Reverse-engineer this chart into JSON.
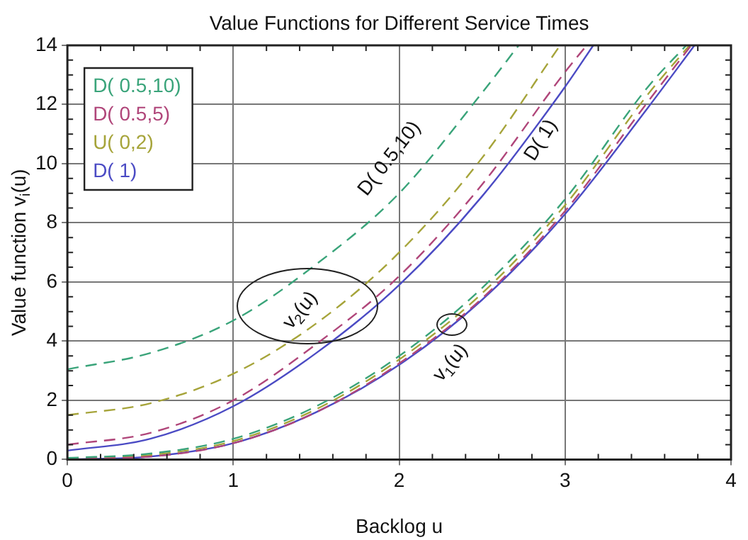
{
  "chart_data": {
    "type": "line",
    "title": "Value Functions for Different Service Times",
    "xlabel": "Backlog u",
    "ylabel": "Value function v$_{i}$(u)",
    "xlim": [
      0,
      4
    ],
    "ylim": [
      0,
      14
    ],
    "xticks": [
      0,
      1,
      2,
      3,
      4
    ],
    "yticks": [
      0,
      2,
      4,
      6,
      8,
      10,
      12,
      14
    ],
    "grid": true,
    "legend": "top left",
    "marker": "none",
    "series": [
      {
        "name": "D( 0.5,10)",
        "color": "#3aa47a",
        "line_style": "dashed",
        "x": [
          0,
          0.5,
          1,
          1.5,
          2,
          2.5,
          2.72
        ],
        "values": [
          3.05,
          3.6,
          4.7,
          6.6,
          9.0,
          12.4,
          14
        ]
      },
      {
        "name": "D( 0.5,5)",
        "color": "#b0467a",
        "line_style": "dashed",
        "x": [
          0,
          0.5,
          1,
          1.5,
          2,
          2.5,
          3,
          3.13
        ],
        "values": [
          0.5,
          0.9,
          2.0,
          3.9,
          6.2,
          9.3,
          13.1,
          14
        ]
      },
      {
        "name": "U( 0,2)",
        "color": "#a6a43a",
        "line_style": "dashed",
        "x": [
          0,
          0.5,
          1,
          1.5,
          2,
          2.5,
          2.97
        ],
        "values": [
          1.5,
          1.9,
          2.9,
          4.6,
          7.0,
          10.2,
          14
        ]
      },
      {
        "name": "D( 1)",
        "color": "#4b4bc4",
        "line_style": "solid",
        "x": [
          0,
          0.5,
          1,
          1.5,
          2,
          2.5,
          3,
          3.17
        ],
        "values": [
          0.3,
          0.7,
          1.8,
          3.6,
          5.9,
          8.9,
          12.6,
          14
        ]
      },
      {
        "color": "#3aa47a",
        "line_style": "dashed",
        "x": [
          0,
          0.5,
          1,
          1.5,
          2,
          2.5,
          3,
          3.5,
          3.73
        ],
        "values": [
          0.05,
          0.2,
          0.7,
          1.8,
          3.5,
          5.8,
          8.8,
          12.6,
          14
        ]
      },
      {
        "color": "#b0467a",
        "line_style": "dashed",
        "x": [
          0,
          0.5,
          1,
          1.5,
          2,
          2.5,
          3,
          3.5,
          3.76
        ],
        "values": [
          0.02,
          0.1,
          0.55,
          1.6,
          3.25,
          5.45,
          8.4,
          12.1,
          14
        ]
      },
      {
        "color": "#a6a43a",
        "line_style": "dashed",
        "x": [
          0,
          0.5,
          1,
          1.5,
          2,
          2.5,
          3,
          3.5,
          3.75
        ],
        "values": [
          0,
          0.15,
          0.62,
          1.7,
          3.38,
          5.62,
          8.6,
          12.35,
          14
        ]
      },
      {
        "color": "#4b4bc4",
        "line_style": "solid",
        "x": [
          0,
          0.5,
          1,
          1.5,
          2,
          2.5,
          3,
          3.5,
          3.78
        ],
        "values": [
          0,
          0.1,
          0.55,
          1.6,
          3.2,
          5.4,
          8.3,
          11.9,
          14
        ]
      }
    ],
    "annotations": [
      "D( 0.5,10)",
      "D( 1)",
      "v$_{2}$(u)",
      "v$_{1}$(u)"
    ]
  }
}
